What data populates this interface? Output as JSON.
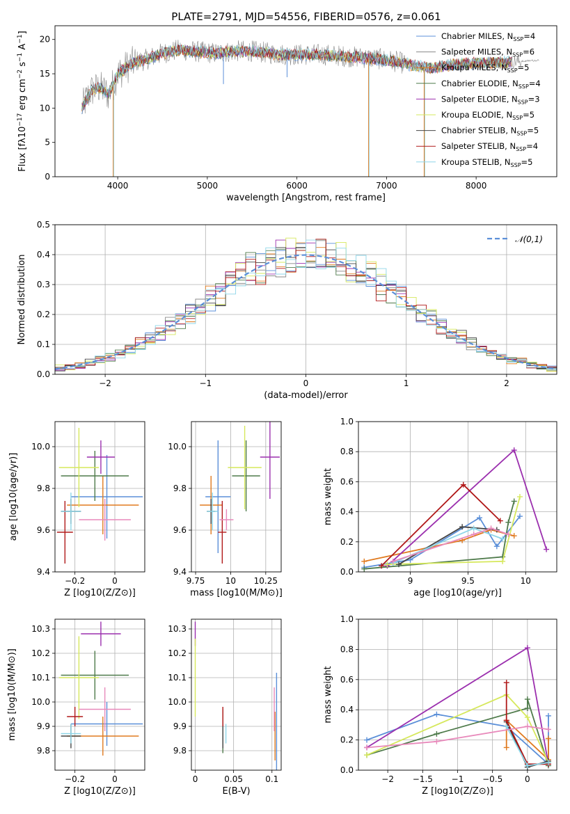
{
  "figure": {
    "title": "PLATE=2791, MJD=54556, FIBERID=0576, z=0.061"
  },
  "legend_colors": {
    "Chabrier MILES": "#5b8fd8",
    "Salpeter MILES": "#888888",
    "Kroupa MILES": "#e07a1f",
    "Chabrier ELODIE": "#4e7a4a",
    "Salpeter ELODIE": "#9b2fae",
    "Kroupa ELODIE": "#d6e85c",
    "Chabrier STELIB": "#444444",
    "Salpeter STELIB": "#b01818",
    "Kroupa STELIB": "#8ed6e8",
    "pink": "#e889bb"
  },
  "chart_data": [
    {
      "type": "line",
      "panel": "spectrum",
      "title": "PLATE=2791, MJD=54556, FIBERID=0576, z=0.061",
      "xlabel": "wavelength [Angstrom, rest frame]",
      "ylabel": "Flux [f_λ 10^-17 erg cm^-2 s^-1 A^-1]",
      "xlim": [
        3300,
        8900
      ],
      "ylim": [
        0,
        22
      ],
      "xticks": [
        4000,
        5000,
        6000,
        7000,
        8000
      ],
      "yticks": [
        0,
        5,
        10,
        15,
        20
      ],
      "grid": false,
      "legend_position": "top-right",
      "legend": [
        {
          "label": "Chabrier MILES",
          "nssp": "4",
          "color": "#5b8fd8"
        },
        {
          "label": "Salpeter MILES",
          "nssp": "6",
          "color": "#888888"
        },
        {
          "label": "Kroupa MILES",
          "nssp": "5",
          "color": "#e07a1f"
        },
        {
          "label": "Chabrier ELODIE",
          "nssp": "4",
          "color": "#4e7a4a"
        },
        {
          "label": "Salpeter ELODIE",
          "nssp": "3",
          "color": "#9b2fae"
        },
        {
          "label": "Kroupa ELODIE",
          "nssp": "5",
          "color": "#d6e85c"
        },
        {
          "label": "Chabrier STELIB",
          "nssp": "5",
          "color": "#444444"
        },
        {
          "label": "Salpeter STELIB",
          "nssp": "4",
          "color": "#b01818"
        },
        {
          "label": "Kroupa STELIB",
          "nssp": "5",
          "color": "#8ed6e8"
        }
      ],
      "continuum": {
        "x": [
          3600,
          3700,
          3800,
          3900,
          4000,
          4100,
          4200,
          4300,
          4400,
          4500,
          4700,
          4900,
          5100,
          5300,
          5500,
          5700,
          5900,
          6100,
          6300,
          6500,
          6700,
          6900,
          7100,
          7300,
          7500,
          7700,
          7900,
          8100,
          8300,
          8500,
          8700
        ],
        "y": [
          10.0,
          12.5,
          13.0,
          12.0,
          15.0,
          16.0,
          16.8,
          17.0,
          17.5,
          18.0,
          18.5,
          18.2,
          18.0,
          18.3,
          18.3,
          18.0,
          17.8,
          17.8,
          17.8,
          17.6,
          17.4,
          17.2,
          16.8,
          16.2,
          15.8,
          16.3,
          16.5,
          16.6,
          16.7,
          16.8,
          17.0
        ]
      },
      "features": [
        {
          "x": 3950,
          "y": 0.0,
          "note": "drop to zero"
        },
        {
          "x": 6800,
          "y": 0.0,
          "note": "drop to zero"
        },
        {
          "x": 7420,
          "y": 0.0,
          "note": "drop to zero"
        },
        {
          "x": 5180,
          "y": 13.5
        },
        {
          "x": 5890,
          "y": 14.5
        }
      ]
    },
    {
      "type": "line",
      "panel": "residual_histograms",
      "xlabel": "(data-model)/error",
      "ylabel": "Normed distribution",
      "xlim": [
        -2.5,
        2.5
      ],
      "ylim": [
        0,
        0.5
      ],
      "xticks": [
        -2,
        -1,
        0,
        1,
        2
      ],
      "yticks": [
        0.0,
        0.1,
        0.2,
        0.3,
        0.4,
        0.5
      ],
      "grid": true,
      "legend_position": "top-right",
      "legend": [
        {
          "label": "𝒩(0,1)",
          "color": "#5b8fd8",
          "style": "dashed"
        }
      ],
      "gaussian": {
        "mu": 0,
        "sigma": 1
      }
    },
    {
      "type": "scatter",
      "panel": "age_vs_Z",
      "xlabel": "Z [log10(Z/Z⊙)]",
      "ylabel": "age [log10(age/yr)]",
      "xlim": [
        -0.3,
        0.15
      ],
      "ylim": [
        9.4,
        10.12
      ],
      "xticks": [
        -0.2,
        0.0
      ],
      "yticks": [
        9.4,
        9.6,
        9.8,
        10.0
      ],
      "grid": true,
      "points": [
        {
          "x": -0.04,
          "y": 9.76,
          "xerr": 0.18,
          "yerr": 0.2,
          "color": "#5b8fd8"
        },
        {
          "x": -0.06,
          "y": 9.72,
          "xerr": 0.18,
          "yerr": 0.14,
          "color": "#e07a1f"
        },
        {
          "x": -0.1,
          "y": 9.86,
          "xerr": 0.17,
          "yerr": 0.12,
          "color": "#4e7a4a"
        },
        {
          "x": -0.07,
          "y": 9.95,
          "xerr": 0.07,
          "yerr": 0.08,
          "color": "#9b2fae"
        },
        {
          "x": -0.18,
          "y": 9.9,
          "xerr": 0.1,
          "yerr": 0.19,
          "color": "#d6e85c"
        },
        {
          "x": -0.22,
          "y": 9.69,
          "xerr": 0.05,
          "yerr": 0.06,
          "color": "#444444"
        },
        {
          "x": -0.25,
          "y": 9.59,
          "xerr": 0.04,
          "yerr": 0.15,
          "color": "#b01818"
        },
        {
          "x": -0.22,
          "y": 9.69,
          "xerr": 0.05,
          "yerr": 0.09,
          "color": "#8ed6e8"
        },
        {
          "x": -0.05,
          "y": 9.65,
          "xerr": 0.13,
          "yerr": 0.1,
          "color": "#e889bb"
        }
      ]
    },
    {
      "type": "scatter",
      "panel": "age_vs_mass",
      "xlabel": "mass [log10(M/M⊙)]",
      "ylabel": "",
      "xlim": [
        9.72,
        10.36
      ],
      "ylim": [
        9.4,
        10.12
      ],
      "xticks": [
        9.75,
        10.0,
        10.25
      ],
      "yticks": [
        9.4,
        9.6,
        9.8,
        10.0
      ],
      "grid": true,
      "points": [
        {
          "x": 9.91,
          "y": 9.76,
          "xerr": 0.09,
          "yerr": 0.27,
          "color": "#5b8fd8"
        },
        {
          "x": 9.86,
          "y": 9.72,
          "xerr": 0.08,
          "yerr": 0.14,
          "color": "#e07a1f"
        },
        {
          "x": 10.11,
          "y": 9.86,
          "xerr": 0.1,
          "yerr": 0.17,
          "color": "#4e7a4a"
        },
        {
          "x": 10.28,
          "y": 9.95,
          "xerr": 0.07,
          "yerr": 0.2,
          "color": "#9b2fae"
        },
        {
          "x": 10.1,
          "y": 9.9,
          "xerr": 0.12,
          "yerr": 0.2,
          "color": "#d6e85c"
        },
        {
          "x": 9.86,
          "y": 9.69,
          "xerr": 0.03,
          "yerr": 0.06,
          "color": "#444444"
        },
        {
          "x": 9.94,
          "y": 9.59,
          "xerr": 0.03,
          "yerr": 0.15,
          "color": "#b01818"
        },
        {
          "x": 9.87,
          "y": 9.69,
          "xerr": 0.04,
          "yerr": 0.09,
          "color": "#8ed6e8"
        },
        {
          "x": 9.97,
          "y": 9.65,
          "xerr": 0.05,
          "yerr": 0.05,
          "color": "#e889bb"
        }
      ]
    },
    {
      "type": "line",
      "panel": "mass_weight_vs_age",
      "xlabel": "age [log10(age/yr)]",
      "ylabel": "mass weight",
      "xlim": [
        8.55,
        10.27
      ],
      "ylim": [
        0,
        1.0
      ],
      "xticks": [
        9.0,
        9.5,
        10.0
      ],
      "yticks": [
        0.0,
        0.2,
        0.4,
        0.6,
        0.8,
        1.0
      ],
      "grid": true,
      "series": [
        {
          "color": "#5b8fd8",
          "x": [
            8.6,
            9.0,
            9.6,
            9.75,
            9.95
          ],
          "y": [
            0.03,
            0.08,
            0.36,
            0.17,
            0.37
          ]
        },
        {
          "color": "#e07a1f",
          "x": [
            8.6,
            9.45,
            9.7,
            9.9
          ],
          "y": [
            0.07,
            0.21,
            0.28,
            0.24
          ]
        },
        {
          "color": "#4e7a4a",
          "x": [
            8.6,
            9.8,
            9.85,
            9.9
          ],
          "y": [
            0.02,
            0.1,
            0.33,
            0.47
          ]
        },
        {
          "color": "#9b2fae",
          "x": [
            8.8,
            9.9,
            10.18
          ],
          "y": [
            0.04,
            0.81,
            0.15
          ]
        },
        {
          "color": "#d6e85c",
          "x": [
            8.8,
            9.8,
            9.95
          ],
          "y": [
            0.05,
            0.07,
            0.5
          ]
        },
        {
          "color": "#444444",
          "x": [
            8.9,
            9.45,
            9.75
          ],
          "y": [
            0.05,
            0.3,
            0.28
          ]
        },
        {
          "color": "#b01818",
          "x": [
            8.75,
            9.46,
            9.78
          ],
          "y": [
            0.04,
            0.58,
            0.34
          ]
        },
        {
          "color": "#8ed6e8",
          "x": [
            8.85,
            9.55,
            9.8
          ],
          "y": [
            0.06,
            0.29,
            0.22
          ]
        },
        {
          "color": "#e889bb",
          "x": [
            8.85,
            9.55,
            9.7,
            9.85
          ],
          "y": [
            0.07,
            0.25,
            0.29,
            0.25
          ]
        }
      ]
    },
    {
      "type": "scatter",
      "panel": "mass_vs_Z",
      "xlabel": "Z [log10(Z/Z⊙)]",
      "ylabel": "mass [log10(M/M⊙)]",
      "xlim": [
        -0.3,
        0.15
      ],
      "ylim": [
        9.72,
        10.34
      ],
      "xticks": [
        -0.2,
        0.0
      ],
      "yticks": [
        9.8,
        9.9,
        10.0,
        10.1,
        10.2,
        10.3
      ],
      "grid": true,
      "points": [
        {
          "x": -0.04,
          "y": 9.91,
          "xerr": 0.18,
          "yerr": 0.09,
          "color": "#5b8fd8"
        },
        {
          "x": -0.06,
          "y": 9.86,
          "xerr": 0.18,
          "yerr": 0.08,
          "color": "#e07a1f"
        },
        {
          "x": -0.1,
          "y": 10.11,
          "xerr": 0.17,
          "yerr": 0.1,
          "color": "#4e7a4a"
        },
        {
          "x": -0.07,
          "y": 10.28,
          "xerr": 0.1,
          "yerr": 0.05,
          "color": "#9b2fae"
        },
        {
          "x": -0.18,
          "y": 10.1,
          "xerr": 0.1,
          "yerr": 0.17,
          "color": "#d6e85c"
        },
        {
          "x": -0.22,
          "y": 9.86,
          "xerr": 0.05,
          "yerr": 0.05,
          "color": "#444444"
        },
        {
          "x": -0.2,
          "y": 9.94,
          "xerr": 0.04,
          "yerr": 0.04,
          "color": "#b01818"
        },
        {
          "x": -0.22,
          "y": 9.87,
          "xerr": 0.05,
          "yerr": 0.04,
          "color": "#8ed6e8"
        },
        {
          "x": -0.05,
          "y": 9.97,
          "xerr": 0.13,
          "yerr": 0.09,
          "color": "#e889bb"
        }
      ]
    },
    {
      "type": "scatter",
      "panel": "mass_vs_ebv",
      "xlabel": "E(B-V)",
      "ylabel": "",
      "xlim": [
        -0.005,
        0.112
      ],
      "ylim": [
        9.72,
        10.34
      ],
      "xticks": [
        0.0,
        0.05,
        0.1
      ],
      "yticks": [
        9.8,
        9.9,
        10.0,
        10.1,
        10.2,
        10.3
      ],
      "grid": true,
      "points": [
        {
          "x": 0.106,
          "y": 9.91,
          "yerr": 0.21,
          "color": "#5b8fd8"
        },
        {
          "x": 0.104,
          "y": 9.86,
          "yerr": 0.1,
          "color": "#e07a1f"
        },
        {
          "x": 0.036,
          "y": 9.88,
          "yerr": 0.09,
          "color": "#4e7a4a"
        },
        {
          "x": 0.0,
          "y": 10.28,
          "yerr": 0.05,
          "color": "#9b2fae"
        },
        {
          "x": 0.0,
          "y": 10.1,
          "yerr": 0.16,
          "color": "#d6e85c"
        },
        {
          "x": 0.036,
          "y": 9.86,
          "yerr": 0.05,
          "color": "#444444"
        },
        {
          "x": 0.036,
          "y": 9.94,
          "yerr": 0.04,
          "color": "#b01818"
        },
        {
          "x": 0.04,
          "y": 9.87,
          "yerr": 0.04,
          "color": "#8ed6e8"
        },
        {
          "x": 0.103,
          "y": 9.97,
          "yerr": 0.09,
          "color": "#e889bb"
        }
      ]
    },
    {
      "type": "line",
      "panel": "mass_weight_vs_Z",
      "xlabel": "Z [log10(Z/Z⊙)]",
      "ylabel": "mass weight",
      "xlim": [
        -2.42,
        0.42
      ],
      "ylim": [
        0,
        1.0
      ],
      "xticks": [
        -2.0,
        -1.5,
        -1.0,
        -0.5,
        0.0
      ],
      "yticks": [
        0.0,
        0.2,
        0.4,
        0.6,
        0.8,
        1.0
      ],
      "grid": true,
      "series": [
        {
          "color": "#5b8fd8",
          "x": [
            -2.3,
            -1.3,
            -0.3,
            0.3,
            0.3
          ],
          "y": [
            0.2,
            0.37,
            0.29,
            0.04,
            0.36
          ]
        },
        {
          "color": "#e07a1f",
          "x": [
            -0.3,
            -0.3,
            0.3,
            0.3
          ],
          "y": [
            0.15,
            0.33,
            0.07,
            0.21
          ]
        },
        {
          "color": "#4e7a4a",
          "x": [
            -2.3,
            -1.3,
            0.0,
            0.0,
            0.3
          ],
          "y": [
            0.1,
            0.24,
            0.41,
            0.47,
            0.03
          ]
        },
        {
          "color": "#9b2fae",
          "x": [
            -2.3,
            0.0,
            0.3
          ],
          "y": [
            0.15,
            0.81,
            0.04
          ]
        },
        {
          "color": "#d6e85c",
          "x": [
            -2.3,
            -0.3,
            0.0,
            0.3
          ],
          "y": [
            0.1,
            0.5,
            0.35,
            0.05
          ]
        },
        {
          "color": "#444444",
          "x": [
            -0.3,
            0.0,
            0.3
          ],
          "y": [
            0.32,
            0.02,
            0.06
          ]
        },
        {
          "color": "#b01818",
          "x": [
            -0.3,
            -0.3,
            0.0,
            0.3
          ],
          "y": [
            0.58,
            0.33,
            0.04,
            0.04
          ]
        },
        {
          "color": "#8ed6e8",
          "x": [
            -0.3,
            0.0,
            0.3
          ],
          "y": [
            0.29,
            0.03,
            0.05
          ]
        },
        {
          "color": "#e889bb",
          "x": [
            -2.3,
            -1.3,
            0.0,
            0.3
          ],
          "y": [
            0.15,
            0.19,
            0.29,
            0.27
          ]
        }
      ]
    }
  ]
}
